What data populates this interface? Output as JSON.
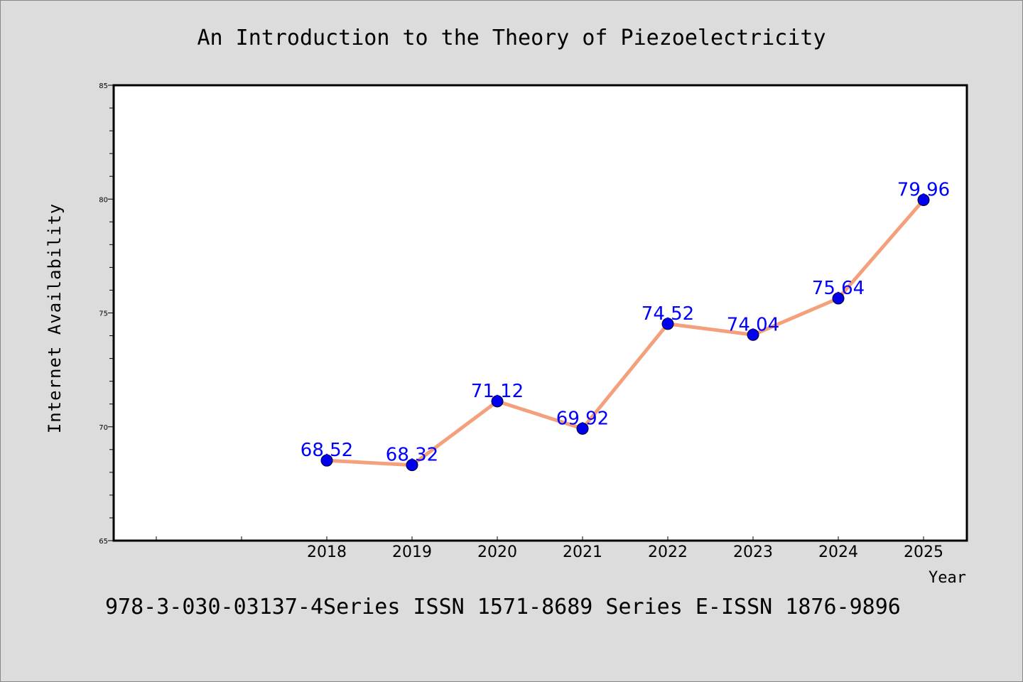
{
  "chart_data": {
    "type": "line",
    "title": "An Introduction to the Theory of Piezoelectricity",
    "xlabel": "Year",
    "ylabel": "Internet Availability",
    "categories": [
      "2018",
      "2019",
      "2020",
      "2021",
      "2022",
      "2023",
      "2024",
      "2025"
    ],
    "series": [
      {
        "values": [
          68.52,
          68.32,
          71.12,
          69.92,
          74.52,
          74.04,
          75.64,
          79.96
        ],
        "data_labels": [
          "68.52",
          "68.32",
          "71.12",
          "69.92",
          "74.52",
          "74.04",
          "75.64",
          "79.96"
        ],
        "line_color": "#f4a07c",
        "marker_color": "#0000ee",
        "label_color": "#0000ff"
      }
    ],
    "ylim": [
      65,
      85
    ],
    "yticks": [
      "65",
      "70",
      "75",
      "80",
      "85"
    ],
    "grid": false,
    "legend": "none",
    "footer": "978-3-030-03137-4Series ISSN 1571-8689 Series E-ISSN 1876-9896"
  },
  "colors": {
    "background": "#dcdcdc",
    "plot_area": "#ffffff"
  }
}
